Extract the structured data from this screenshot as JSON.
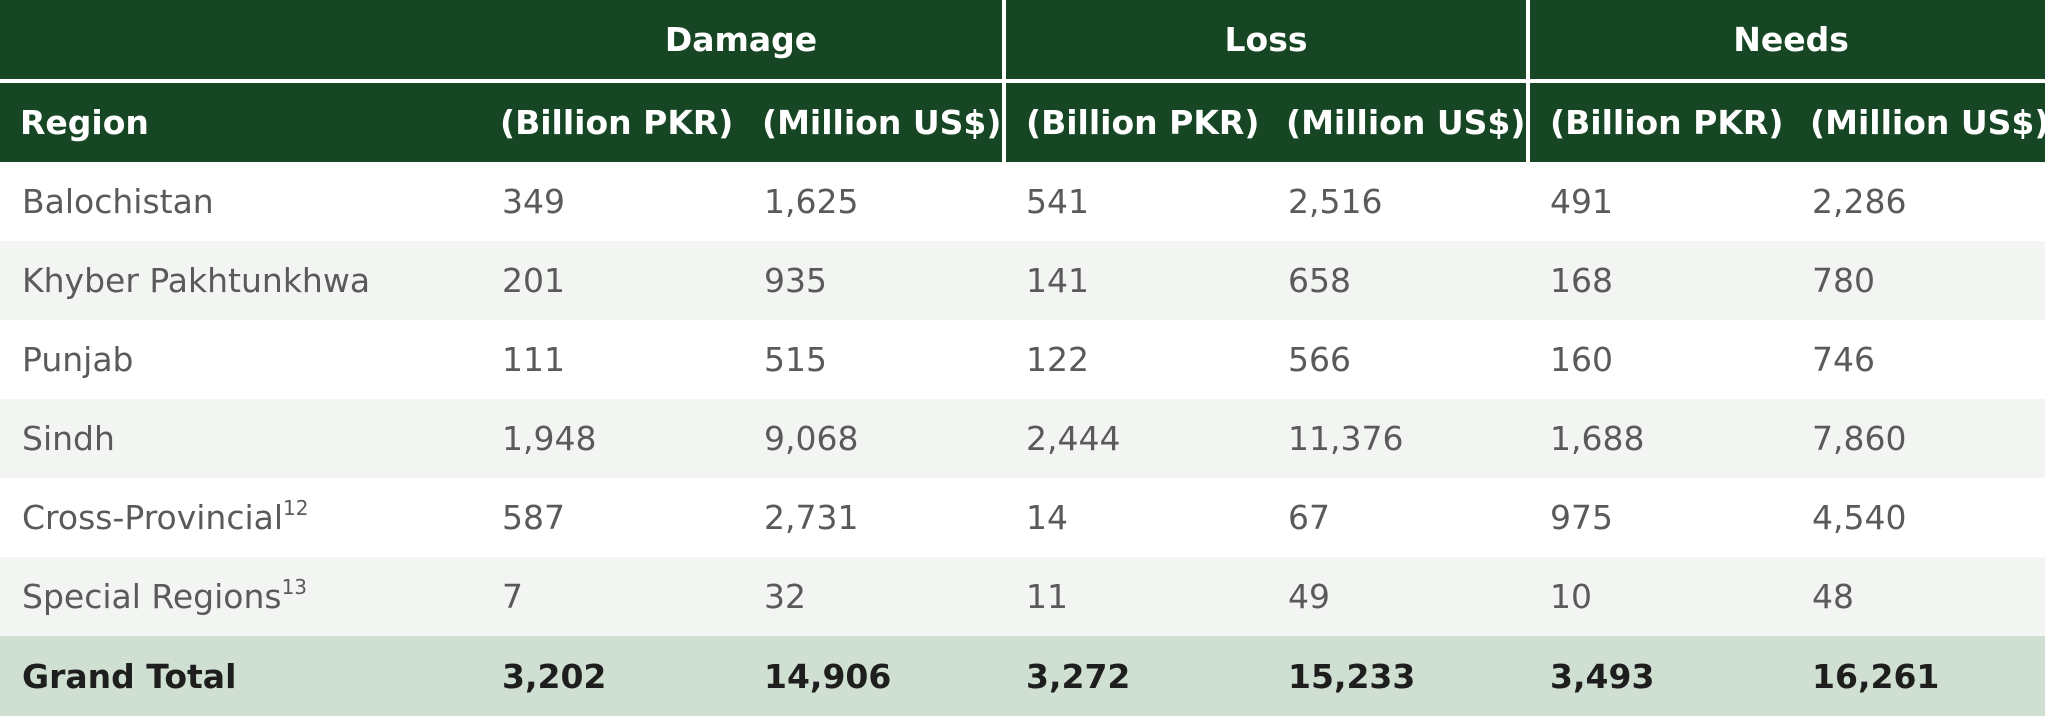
{
  "table": {
    "group_headers": [
      "Damage",
      "Loss",
      "Needs"
    ],
    "region_header": "Region",
    "unit_headers": [
      "(Billion PKR)",
      "(Million US$)",
      "(Billion PKR)",
      "(Million US$)",
      "(Billion PKR)",
      "(Million US$)"
    ],
    "rows": [
      {
        "region": "Balochistan",
        "footnote": "",
        "values": [
          "349",
          "1,625",
          "541",
          "2,516",
          "491",
          "2,286"
        ]
      },
      {
        "region": "Khyber Pakhtunkhwa",
        "footnote": "",
        "values": [
          "201",
          "935",
          "141",
          "658",
          "168",
          "780"
        ]
      },
      {
        "region": "Punjab",
        "footnote": "",
        "values": [
          "111",
          "515",
          "122",
          "566",
          "160",
          "746"
        ]
      },
      {
        "region": "Sindh",
        "footnote": "",
        "values": [
          "1,948",
          "9,068",
          "2,444",
          "11,376",
          "1,688",
          "7,860"
        ]
      },
      {
        "region": "Cross-Provincial",
        "footnote": "12",
        "values": [
          "587",
          "2,731",
          "14",
          "67",
          "975",
          "4,540"
        ]
      },
      {
        "region": "Special Regions",
        "footnote": "13",
        "values": [
          "7",
          "32",
          "11",
          "49",
          "10",
          "48"
        ]
      }
    ],
    "total": {
      "region": "Grand Total",
      "values": [
        "3,202",
        "14,906",
        "3,272",
        "15,233",
        "3,493",
        "16,261"
      ]
    },
    "colors": {
      "header_bg": "#164623",
      "header_text": "#ffffff",
      "stripe_bg": "#f3f5f3",
      "total_bg": "#cfdfd1",
      "body_text": "#5a5a5a"
    }
  }
}
